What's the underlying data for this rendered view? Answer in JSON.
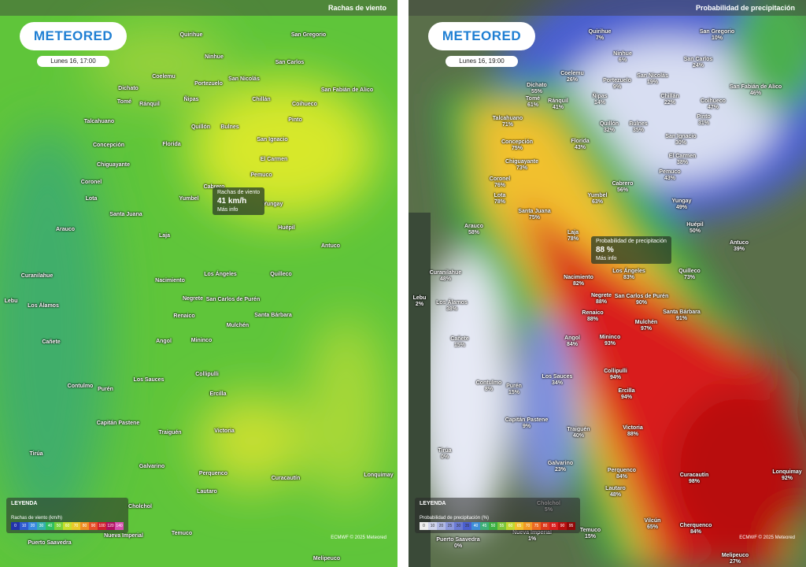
{
  "panels": [
    {
      "layer_label": "Rachas de viento",
      "logo": "METEORED",
      "time": "Lunes 16, 17:00",
      "tooltip": {
        "title": "Rachas de viento",
        "value": "41 km/h",
        "link": "Más info"
      },
      "legend": {
        "heading": "LEYENDA",
        "title": "Rachas de viento (km/h)",
        "scale": [
          0,
          10,
          20,
          30,
          40,
          50,
          60,
          70,
          80,
          90,
          100,
          120,
          140
        ]
      },
      "credit": "ECMWF © 2025 Meteored",
      "places": [
        "Quirihue",
        "San Gregorio",
        "Ninhue",
        "San Carlos",
        "Dichato",
        "Coelemu",
        "Portezuelo",
        "San Nicolás",
        "San Fabián de Alico",
        "Tomé",
        "Ránquil",
        "Ñipas",
        "Chillán",
        "Coihueco",
        "Talcahuano",
        "Quillón",
        "Bulnes",
        "Pinto",
        "Concepción",
        "Florida",
        "San Ignacio",
        "Chiguayante",
        "El Carmen",
        "Coronel",
        "Pemuco",
        "Lota",
        "Cabrero",
        "Yumbel",
        "Yungay",
        "Santa Juana",
        "Huépil",
        "Arauco",
        "Laja",
        "Antuco",
        "Curanilahue",
        "Nacimiento",
        "Los Ángeles",
        "Quilleco",
        "Lebu",
        "Los Álamos",
        "Negrete",
        "San Carlos de Purén",
        "Renaico",
        "Santa Bárbara",
        "Mulchén",
        "Cañete",
        "Angol",
        "Mininco",
        "Collipulli",
        "Contulmo",
        "Purén",
        "Los Sauces",
        "Ercilla",
        "Capitán Pastene",
        "Traiguén",
        "Victoria",
        "Tirúa",
        "Galvarino",
        "Perquenco",
        "Lonquimay",
        "Curacautín",
        "Lautaro",
        "Cholchol",
        "Nueva Imperial",
        "Temuco",
        "Puerto Saavedra",
        "Melipeuco"
      ]
    },
    {
      "layer_label": "Probabilidad de precipitación",
      "logo": "METEORED",
      "time": "Lunes 16, 19:00",
      "tooltip": {
        "title": "Probabilidad de precipitación",
        "value": "88 %",
        "link": "Más info"
      },
      "legend": {
        "heading": "LEYENDA",
        "title": "Probabilidad de precipitación (%)",
        "scale": [
          0,
          10,
          20,
          25,
          30,
          35,
          40,
          45,
          50,
          55,
          60,
          65,
          70,
          75,
          80,
          85,
          90,
          95
        ]
      },
      "credit": "ECMWF © 2025 Meteored",
      "places": [
        [
          "Quirihue",
          "7%"
        ],
        [
          "San Gregorio",
          "10%"
        ],
        [
          "Ninhue",
          "6%"
        ],
        [
          "San Carlos",
          "24%"
        ],
        [
          "Dichato",
          "55%"
        ],
        [
          "Coelemu",
          "26%"
        ],
        [
          "Portezuelo",
          "9%"
        ],
        [
          "San Nicolás",
          "19%"
        ],
        [
          "San Fabián de Alico",
          "46%"
        ],
        [
          "Tomé",
          "61%"
        ],
        [
          "Ránquil",
          "41%"
        ],
        [
          "Ñipas",
          "14%"
        ],
        [
          "Chillán",
          "22%"
        ],
        [
          "Coihueco",
          "47%"
        ],
        [
          "Talcahuano",
          "71%"
        ],
        [
          "Quillón",
          "32%"
        ],
        [
          "Bulnes",
          "35%"
        ],
        [
          "Pinto",
          "31%"
        ],
        [
          "Concepción",
          "75%"
        ],
        [
          "Florida",
          "43%"
        ],
        [
          "San Ignacio",
          "30%"
        ],
        [
          "Chiguayante",
          "73%"
        ],
        [
          "El Carmen",
          "38%"
        ],
        [
          "Coronel",
          "76%"
        ],
        [
          "Pemuco",
          "43%"
        ],
        [
          "Lota",
          "78%"
        ],
        [
          "Cabrero",
          "56%"
        ],
        [
          "Yumbel",
          "63%"
        ],
        [
          "Yungay",
          "49%"
        ],
        [
          "Santa Juana",
          "75%"
        ],
        [
          "Huépil",
          "50%"
        ],
        [
          "Arauco",
          "58%"
        ],
        [
          "Laja",
          "78%"
        ],
        [
          "Antuco",
          "39%"
        ],
        [
          "Curanilahue",
          "48%"
        ],
        [
          "Nacimiento",
          "82%"
        ],
        [
          "Los Ángeles",
          "83%"
        ],
        [
          "Quilleco",
          "73%"
        ],
        [
          "Lebu",
          "2%"
        ],
        [
          "Los Álamos",
          "38%"
        ],
        [
          "Negrete",
          "88%"
        ],
        [
          "San Carlos de Purén",
          "90%"
        ],
        [
          "Renaico",
          "88%"
        ],
        [
          "Santa Bárbara",
          "91%"
        ],
        [
          "Mulchén",
          "97%"
        ],
        [
          "Cañete",
          "15%"
        ],
        [
          "Angol",
          "84%"
        ],
        [
          "Mininco",
          "93%"
        ],
        [
          "Collipulli",
          "94%"
        ],
        [
          "Contulmo",
          "8%"
        ],
        [
          "Purén",
          "15%"
        ],
        [
          "Los Sauces",
          "34%"
        ],
        [
          "Ercilla",
          "94%"
        ],
        [
          "Capitán Pastene",
          "9%"
        ],
        [
          "Traiguén",
          "40%"
        ],
        [
          "Victoria",
          "88%"
        ],
        [
          "Tirúa",
          "0%"
        ],
        [
          "Galvarino",
          "23%"
        ],
        [
          "Perquenco",
          "84%"
        ],
        [
          "Lonquimay",
          "92%"
        ],
        [
          "Curacautín",
          "98%"
        ],
        [
          "Lautaro",
          "48%"
        ],
        [
          "Cholchol",
          "5%"
        ],
        [
          "Nueva Imperial",
          "1%"
        ],
        [
          "Temuco",
          "15%"
        ],
        [
          "Puerto Saavedra",
          "0%"
        ],
        [
          "Melipeuco",
          "27%"
        ],
        [
          "Vilcún",
          "65%"
        ],
        [
          "Cherquenco",
          "84%"
        ]
      ]
    }
  ]
}
